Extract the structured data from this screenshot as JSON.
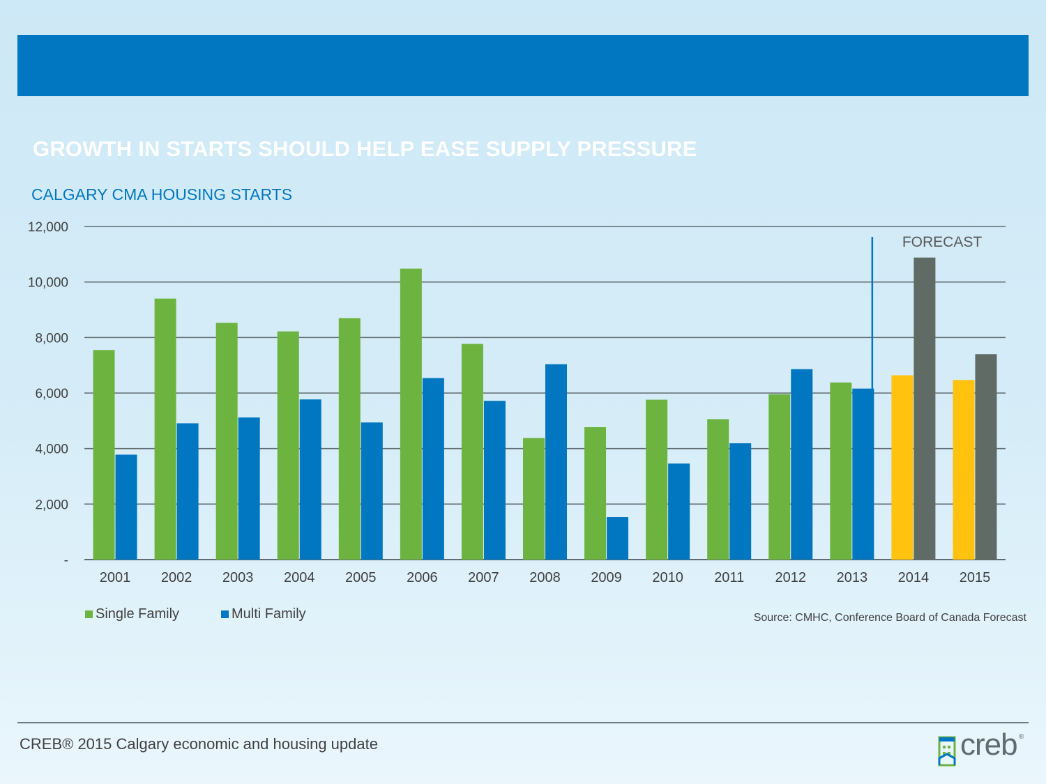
{
  "slide": {
    "title": "GROWTH IN STARTS SHOULD HELP EASE SUPPLY PRESSURE",
    "footer": "CREB® 2015 Calgary economic and housing update",
    "source": "Source: CMHC, Conference Board of Canada Forecast",
    "logo_text": "creb",
    "logo_reg": "®"
  },
  "chart_data": {
    "type": "bar",
    "title": "CALGARY CMA HOUSING STARTS",
    "xlabel": "",
    "ylabel": "",
    "ylim": [
      0,
      12000
    ],
    "yticks": [
      0,
      2000,
      4000,
      6000,
      8000,
      10000,
      12000
    ],
    "ytick_labels": [
      "-",
      "2,000",
      "4,000",
      "6,000",
      "8,000",
      "10,000",
      "12,000"
    ],
    "grid": true,
    "legend_position": "bottom-left",
    "categories": [
      "2001",
      "2002",
      "2003",
      "2004",
      "2005",
      "2006",
      "2007",
      "2008",
      "2009",
      "2010",
      "2011",
      "2012",
      "2013",
      "2014",
      "2015"
    ],
    "series": [
      {
        "name": "Single Family",
        "color": "#6db33f",
        "forecast_color": "#ffc20e",
        "values": [
          7550,
          9400,
          8530,
          8220,
          8700,
          10480,
          7770,
          4380,
          4770,
          5760,
          5060,
          5960,
          6380,
          6640,
          6470
        ]
      },
      {
        "name": "Multi Family",
        "color": "#0077c0",
        "forecast_color": "#5f6b64",
        "values": [
          3780,
          4910,
          5120,
          5770,
          4940,
          6540,
          5720,
          7040,
          1530,
          3460,
          4190,
          6860,
          6160,
          10880,
          7400
        ]
      }
    ],
    "forecast_label": "FORECAST",
    "forecast_start_index": 13,
    "colors": {
      "grid": "#606b70",
      "axis_text": "#404040",
      "forecast_line": "#0077c0",
      "forecast_text": "#595959"
    }
  }
}
